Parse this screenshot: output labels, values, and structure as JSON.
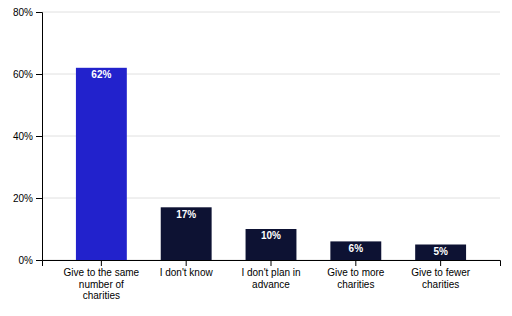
{
  "chart_data": {
    "type": "bar",
    "categories": [
      "Give to the same\nnumber of\ncharities",
      "I don't know",
      "I don't plan in\nadvance",
      "Give to more\ncharities",
      "Give to fewer\ncharities"
    ],
    "values": [
      62,
      17,
      10,
      6,
      5
    ],
    "value_labels": [
      "62%",
      "17%",
      "10%",
      "6%",
      "5%"
    ],
    "colors": [
      "#2222cc",
      "#0d1233",
      "#0d1233",
      "#0d1233",
      "#0d1233"
    ],
    "ylim": [
      0,
      80
    ],
    "yticks": [
      {
        "value": 0,
        "label": "0%"
      },
      {
        "value": 20,
        "label": "20%"
      },
      {
        "value": 40,
        "label": "40%"
      },
      {
        "value": 60,
        "label": "60%"
      },
      {
        "value": 80,
        "label": "80%"
      }
    ],
    "grid": true,
    "data_labels": true
  }
}
